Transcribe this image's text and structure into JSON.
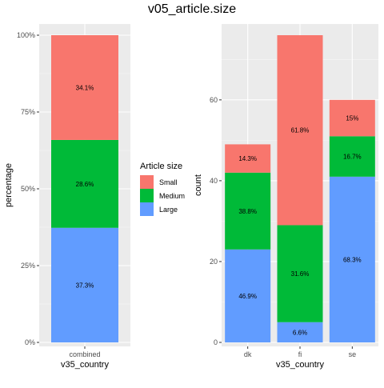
{
  "title": "v05_article.size",
  "legend": {
    "title": "Article size",
    "entries": [
      {
        "label": "Small",
        "color": "#F8766D"
      },
      {
        "label": "Medium",
        "color": "#00BA38"
      },
      {
        "label": "Large",
        "color": "#619CFF"
      }
    ]
  },
  "chart_data": [
    {
      "type": "bar",
      "stacked": true,
      "title": "v05_article.size",
      "xlabel": "v35_country",
      "ylabel": "percentage",
      "categories": [
        "combined"
      ],
      "ylim": [
        0,
        1
      ],
      "yticks": [
        0,
        0.25,
        0.5,
        0.75,
        1.0
      ],
      "ytick_labels": [
        "0%",
        "25%",
        "50%",
        "75%",
        "100%"
      ],
      "grid": true,
      "legend_position": "right",
      "series": [
        {
          "name": "Large",
          "color": "#619CFF",
          "values": [
            0.373
          ],
          "labels": [
            "37.3%"
          ]
        },
        {
          "name": "Medium",
          "color": "#00BA38",
          "values": [
            0.286
          ],
          "labels": [
            "28.6%"
          ]
        },
        {
          "name": "Small",
          "color": "#F8766D",
          "values": [
            0.341
          ],
          "labels": [
            "34.1%"
          ]
        }
      ]
    },
    {
      "type": "bar",
      "stacked": true,
      "xlabel": "v35_country",
      "ylabel": "count",
      "categories": [
        "dk",
        "fi",
        "se"
      ],
      "ylim": [
        0,
        76
      ],
      "yticks": [
        0,
        20,
        40,
        60
      ],
      "ytick_labels": [
        "0",
        "20",
        "40",
        "60"
      ],
      "grid": true,
      "series": [
        {
          "name": "Large",
          "color": "#619CFF",
          "values": [
            23,
            5,
            41
          ],
          "labels": [
            "46.9%",
            "6.6%",
            "68.3%"
          ]
        },
        {
          "name": "Medium",
          "color": "#00BA38",
          "values": [
            19,
            24,
            10
          ],
          "labels": [
            "38.8%",
            "31.6%",
            "16.7%"
          ]
        },
        {
          "name": "Small",
          "color": "#F8766D",
          "values": [
            7,
            47,
            9
          ],
          "labels": [
            "14.3%",
            "61.8%",
            "15%"
          ]
        }
      ]
    }
  ]
}
